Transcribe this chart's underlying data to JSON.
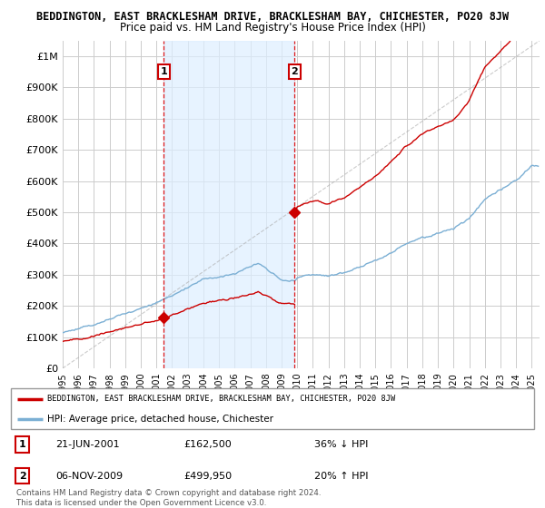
{
  "title": "BEDDINGTON, EAST BRACKLESHAM DRIVE, BRACKLESHAM BAY, CHICHESTER, PO20 8JW",
  "subtitle": "Price paid vs. HM Land Registry's House Price Index (HPI)",
  "hpi_label": "HPI: Average price, detached house, Chichester",
  "price_label": "BEDDINGTON, EAST BRACKLESHAM DRIVE, BRACKLESHAM BAY, CHICHESTER, PO20 8JW",
  "transactions": [
    {
      "num": 1,
      "date": "21-JUN-2001",
      "price": 162500,
      "pct": "36%",
      "dir": "↓",
      "x": 2001.47
    },
    {
      "num": 2,
      "date": "06-NOV-2009",
      "price": 499950,
      "pct": "20%",
      "dir": "↑",
      "x": 2009.84
    }
  ],
  "line_color_price": "#cc0000",
  "line_color_hpi": "#7bafd4",
  "marker_color": "#cc0000",
  "vline_color": "#dd0000",
  "bg_color": "#ffffff",
  "grid_color": "#cccccc",
  "shade_color": "#ddeeff",
  "ylim": [
    0,
    1050000
  ],
  "xlim": [
    1995.0,
    2025.5
  ],
  "yticks": [
    0,
    100000,
    200000,
    300000,
    400000,
    500000,
    600000,
    700000,
    800000,
    900000,
    1000000
  ],
  "ytick_labels": [
    "£0",
    "£100K",
    "£200K",
    "£300K",
    "£400K",
    "£500K",
    "£600K",
    "£700K",
    "£800K",
    "£900K",
    "£1M"
  ],
  "xticks": [
    1995,
    1996,
    1997,
    1998,
    1999,
    2000,
    2001,
    2002,
    2003,
    2004,
    2005,
    2006,
    2007,
    2008,
    2009,
    2010,
    2011,
    2012,
    2013,
    2014,
    2015,
    2016,
    2017,
    2018,
    2019,
    2020,
    2021,
    2022,
    2023,
    2024,
    2025
  ],
  "footnote": "Contains HM Land Registry data © Crown copyright and database right 2024.\nThis data is licensed under the Open Government Licence v3.0."
}
